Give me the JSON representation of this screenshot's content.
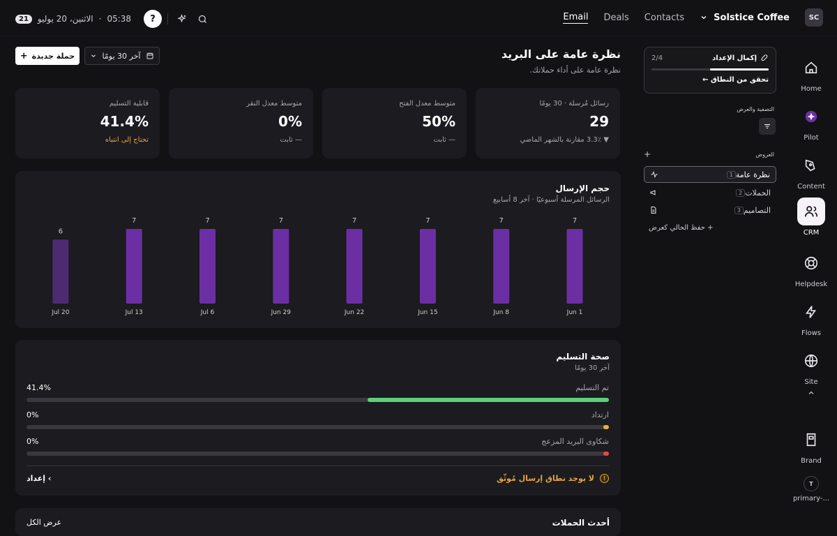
{
  "topbar": {
    "badge": "21",
    "date": "الاثنين، 20 يوليو",
    "time": "05:38",
    "sep": "·",
    "help_glyph": "?",
    "nav": [
      "Email",
      "Deals",
      "Contacts"
    ],
    "brand": "Solstice Coffee",
    "avatar": "SC"
  },
  "header": {
    "title": "نظرة عامة على البريد",
    "subtitle": "نظرة عامة على أداء حملاتك.",
    "new_campaign": "حملة جديدة",
    "range": "آخر 30 يومًا"
  },
  "kpis": [
    {
      "label": "رسائل مُرسلة · 30 يومًا",
      "value": "29",
      "sub": "▼ 3.3٪ مقارنة بالشهر الماضي",
      "sub_color": "#a8a6ad"
    },
    {
      "label": "متوسط معدل الفتح",
      "value": "50%",
      "sub": "— ثابت",
      "sub_color": "#a8a6ad"
    },
    {
      "label": "متوسط معدل النقر",
      "value": "0%",
      "sub": "— ثابت",
      "sub_color": "#a8a6ad"
    },
    {
      "label": "قابلية التسليم",
      "value": "41.4%",
      "sub": "تحتاج إلى انتباه",
      "sub_color": "#e3a545"
    }
  ],
  "volume": {
    "title": "حجم الإرسال",
    "subtitle": "الرسائل المرسلة أسبوعيًا · آخر 8 أسابيع"
  },
  "chart_data": {
    "type": "bar",
    "categories": [
      "Jun 1",
      "Jun 8",
      "Jun 15",
      "Jun 22",
      "Jun 29",
      "Jul 6",
      "Jul 13",
      "Jul 20"
    ],
    "values": [
      7,
      7,
      7,
      7,
      7,
      7,
      7,
      6
    ],
    "title": "حجم الإرسال",
    "colors": {
      "bar": "#6b2fa3",
      "bar_current": "#4e2a72"
    }
  },
  "health": {
    "title": "صحة التسليم",
    "subtitle": "آخر 30 يومًا",
    "rows": [
      {
        "label": "تم التسليم",
        "value": "41.4%",
        "fraction": 0.414,
        "color": "#5fd07a"
      },
      {
        "label": "ارتداد",
        "value": "0%",
        "fraction": 0,
        "color": "#e3b33a"
      },
      {
        "label": "شكاوى البريد المزعج",
        "value": "0%",
        "fraction": 0,
        "color": "#e24848"
      }
    ],
    "warning": "لا يوجد نطاق إرسال مُوثّق",
    "setup_link": "إعداد ‹"
  },
  "sidebar": {
    "setup_title": "إكمال الإعداد",
    "setup_progress": "2/4",
    "setup_fraction": 0.5,
    "setup_link": "تحقق من النطاق ←",
    "filter_label": "التصفية والعرض",
    "views_label": "العروض",
    "add_glyph": "+",
    "views": [
      {
        "label": "نظرة عامة",
        "key": "1",
        "icon": "activity-icon"
      },
      {
        "label": "الحملات",
        "key": "2",
        "icon": "megaphone-icon"
      },
      {
        "label": "التصاميم",
        "key": "3",
        "icon": "document-icon"
      }
    ],
    "save_view": "+ حفظ الحالي كعرض"
  },
  "rail": {
    "items": [
      "Home",
      "Pilot",
      "Content",
      "CRM",
      "Helpdesk",
      "Flows",
      "Site",
      "Brand",
      "primary-..."
    ],
    "bottom_avatar": "T"
  },
  "bottom_card": {
    "title": "أحدث الحملات",
    "link": "عرض الكل"
  }
}
